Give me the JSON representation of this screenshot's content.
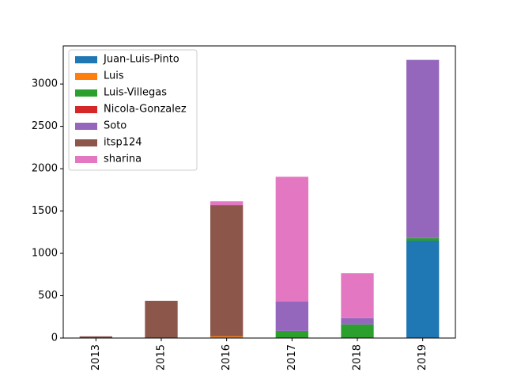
{
  "chart_data": {
    "type": "stacked-bar",
    "categories": [
      "2013",
      "2015",
      "2016",
      "2017",
      "2018",
      "2019"
    ],
    "series": [
      {
        "name": "Juan-Luis-Pinto",
        "color": "#1f77b4",
        "values": [
          null,
          null,
          null,
          null,
          null,
          1150
        ]
      },
      {
        "name": "Luis",
        "color": "#ff7f0e",
        "values": [
          null,
          null,
          20,
          null,
          null,
          null
        ]
      },
      {
        "name": "Luis-Villegas",
        "color": "#2ca02c",
        "values": [
          null,
          null,
          null,
          85,
          160,
          30
        ]
      },
      {
        "name": "Nicola-Gonzalez",
        "color": "#d62728",
        "values": [
          null,
          null,
          null,
          null,
          null,
          null
        ]
      },
      {
        "name": "Soto",
        "color": "#9467bd",
        "values": [
          null,
          null,
          null,
          345,
          75,
          2105
        ]
      },
      {
        "name": "itsp124",
        "color": "#8c564b",
        "values": [
          20,
          440,
          1550,
          null,
          null,
          null
        ]
      },
      {
        "name": "sharina",
        "color": "#e377c2",
        "values": [
          null,
          null,
          45,
          1475,
          530,
          null
        ]
      }
    ],
    "ylim": [
      0,
      3450
    ],
    "yticks": [
      0,
      500,
      1000,
      1500,
      2000,
      2500,
      3000
    ],
    "legend": "upper-left"
  }
}
